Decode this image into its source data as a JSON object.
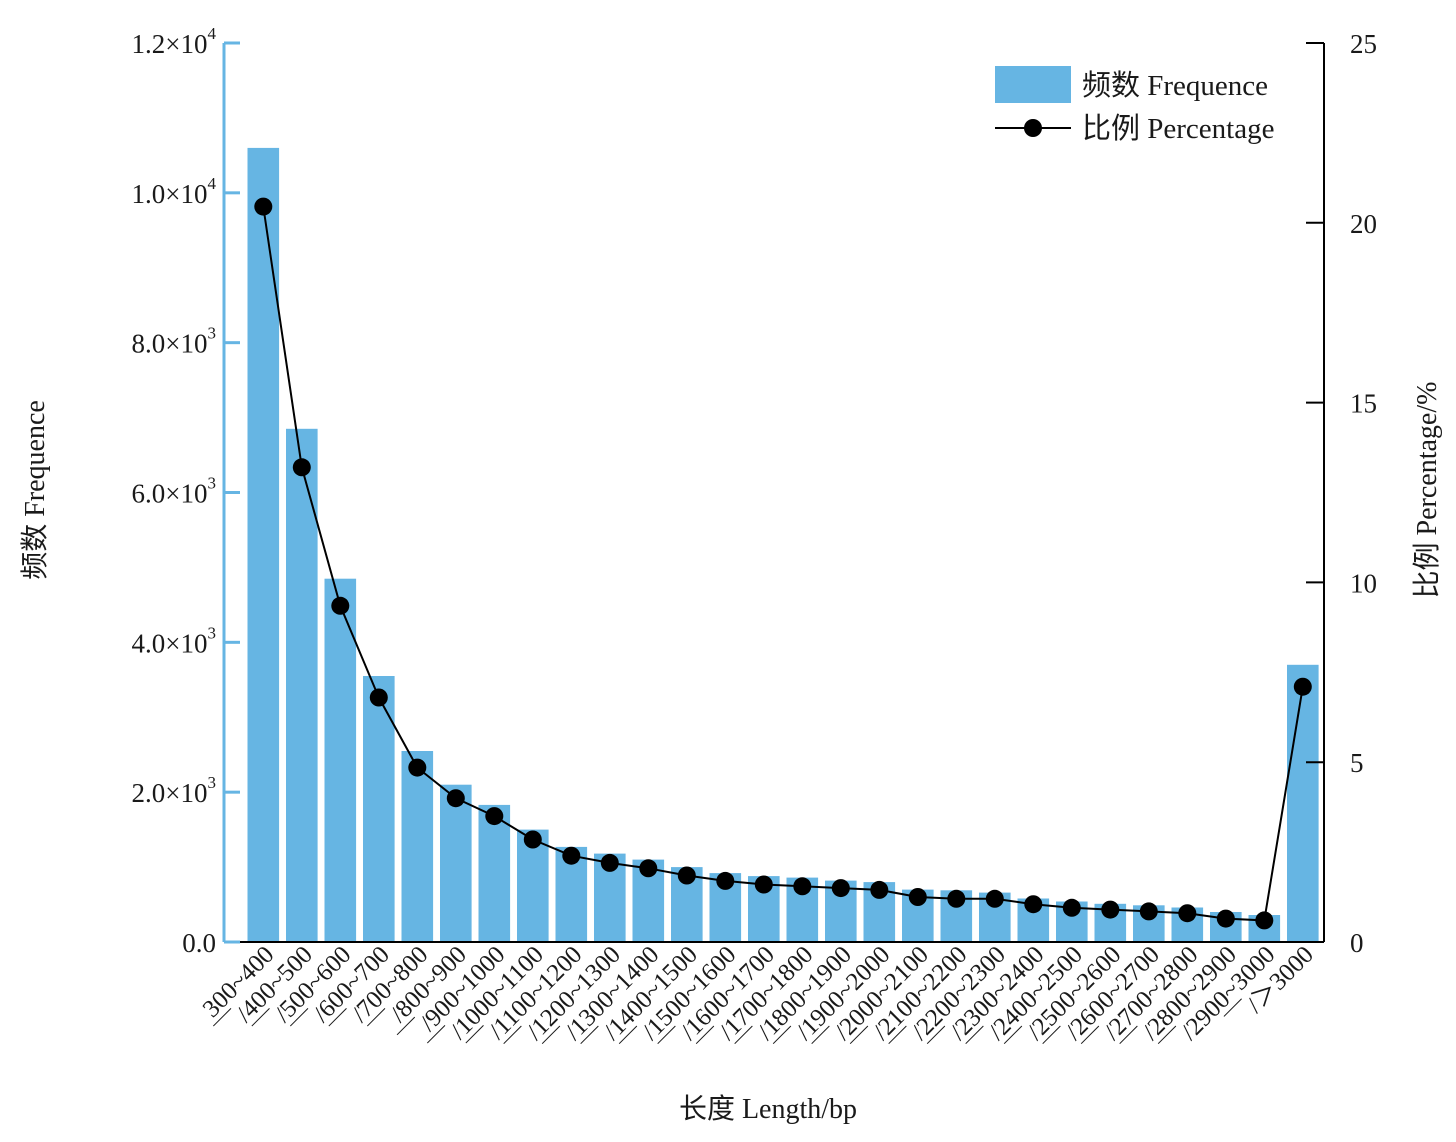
{
  "chart_data": {
    "type": "bar",
    "title": "",
    "xlabel": "长度 Length/bp",
    "ylabel": "频数 Frequence",
    "y2label": "比例 Percentage/%",
    "categories": [
      "300~400",
      "400~500",
      "500~600",
      "600~700",
      "700~800",
      "800~900",
      "900~1000",
      "1000~1100",
      "1100~1200",
      "1200~1300",
      "1300~1400",
      "1400~1500",
      "1500~1600",
      "1600~1700",
      "1700~1800",
      "1800~1900",
      "1900~2000",
      "2000~2100",
      "2100~2200",
      "2200~2300",
      "2300~2400",
      "2400~2500",
      "2500~2600",
      "2600~2700",
      "2700~2800",
      "2800~2900",
      "2900~3000",
      ">3000"
    ],
    "category_labels": [
      "300~400",
      "￣/400~500",
      "￣/500~600",
      "￣/600~700",
      "￣/700~800",
      "￣/800~900",
      "￣/900~1000",
      "￣/1000~1100",
      "￣/1100~1200",
      "￣/1200~1300",
      "￣/1300~1400",
      "￣/1400~1500",
      "￣/1500~1600",
      "￣/1600~1700",
      "￣/1700~1800",
      "￣/1800~1900",
      "￣/1900~2000",
      "￣/2000~2100",
      "￣/2100~2200",
      "￣/2200~2300",
      "￣/2300~2400",
      "￣/2400~2500",
      "￣/2500~2600",
      "￣/2600~2700",
      "￣/2700~2800",
      "￣/2800~2900",
      "￣/2900~3000",
      "￣/＞3000"
    ],
    "series": [
      {
        "name": "频数 Frequence",
        "type": "bar",
        "axis": "left",
        "color": "#66b5e3",
        "values": [
          10600,
          6850,
          4850,
          3550,
          2550,
          2100,
          1830,
          1500,
          1270,
          1180,
          1100,
          1000,
          920,
          880,
          860,
          820,
          800,
          700,
          690,
          660,
          580,
          540,
          510,
          490,
          460,
          400,
          360,
          3700
        ]
      },
      {
        "name": "比例 Percentage",
        "type": "line",
        "axis": "right",
        "color": "#000000",
        "values": [
          20.45,
          13.2,
          9.35,
          6.8,
          4.85,
          4.0,
          3.5,
          2.85,
          2.4,
          2.2,
          2.05,
          1.85,
          1.7,
          1.6,
          1.55,
          1.5,
          1.45,
          1.25,
          1.2,
          1.2,
          1.05,
          0.95,
          0.9,
          0.85,
          0.8,
          0.65,
          0.6,
          7.1
        ]
      }
    ],
    "ylim": [
      0,
      12000
    ],
    "y_ticks": [
      {
        "value": 0,
        "mantissa": "0.0",
        "exponent": ""
      },
      {
        "value": 2000,
        "mantissa": "2.0×10",
        "exponent": "3"
      },
      {
        "value": 4000,
        "mantissa": "4.0×10",
        "exponent": "3"
      },
      {
        "value": 6000,
        "mantissa": "6.0×10",
        "exponent": "3"
      },
      {
        "value": 8000,
        "mantissa": "8.0×10",
        "exponent": "3"
      },
      {
        "value": 10000,
        "mantissa": "1.0×10",
        "exponent": "4"
      },
      {
        "value": 12000,
        "mantissa": "1.2×10",
        "exponent": "4"
      }
    ],
    "y2lim": [
      0,
      25
    ],
    "y2_ticks": [
      0,
      5,
      10,
      15,
      20,
      25
    ],
    "left_axis_color": "#66b5e3",
    "right_axis_color": "#000000",
    "grid": false,
    "legend": {
      "position": "top-right",
      "entries": [
        "频数 Frequence",
        "比例 Percentage"
      ]
    }
  }
}
